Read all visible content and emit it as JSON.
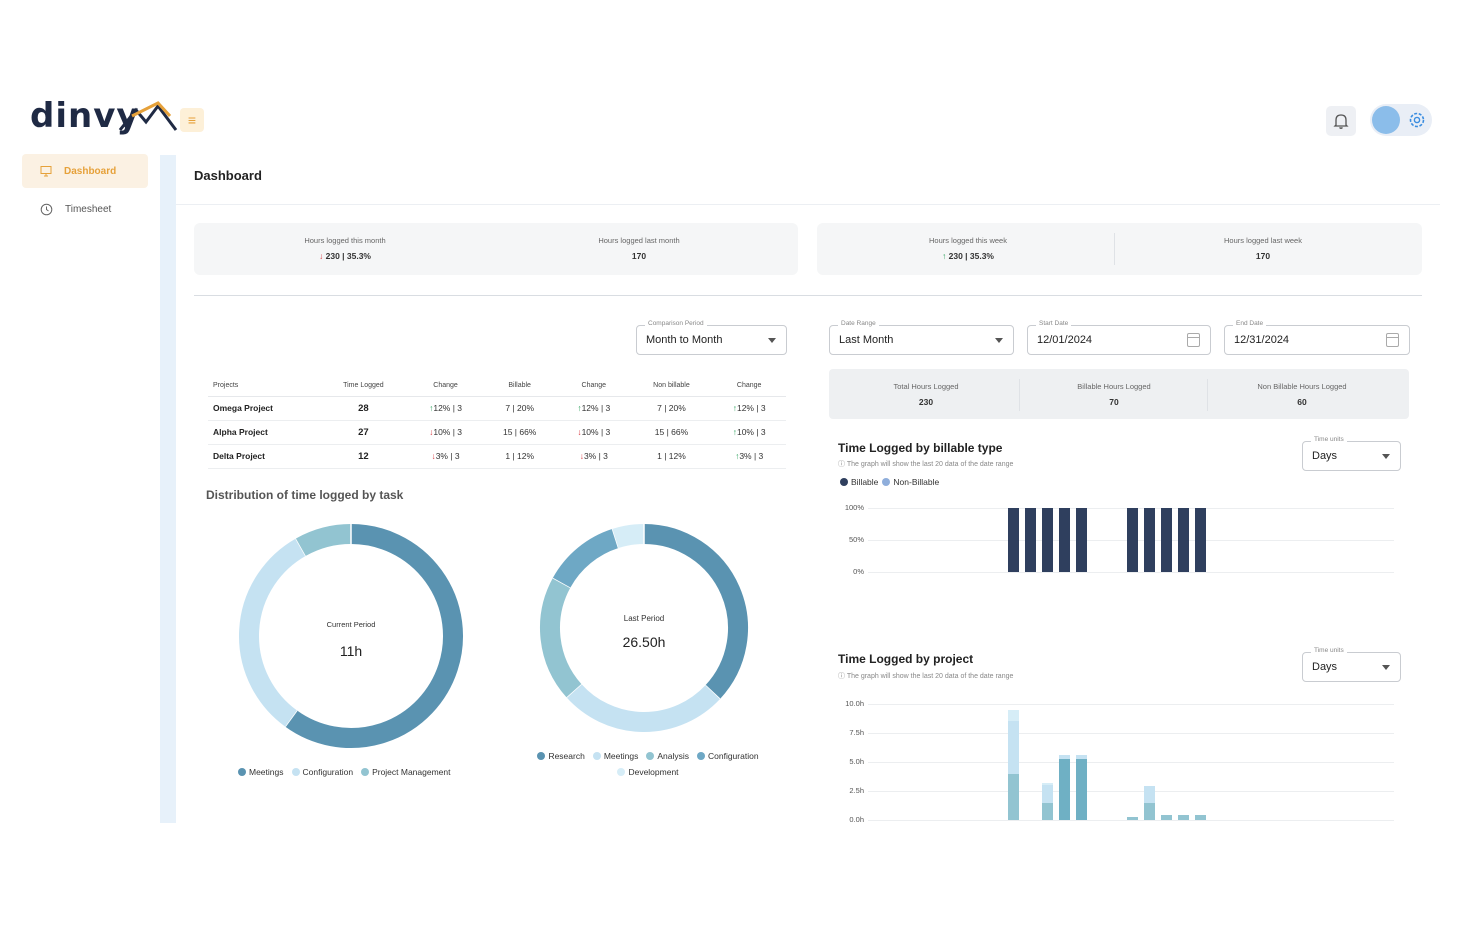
{
  "app": {
    "logo_text": "dinvy"
  },
  "sidebar": {
    "items": [
      {
        "label": "Dashboard",
        "icon": "monitor-icon",
        "active": true
      },
      {
        "label": "Timesheet",
        "icon": "clock-icon",
        "active": false
      }
    ]
  },
  "page": {
    "title": "Dashboard"
  },
  "stats_month": [
    {
      "label": "Hours logged this month",
      "value": "230 | 35.3%",
      "trend": "down"
    },
    {
      "label": "Hours logged last month",
      "value": "170",
      "trend": "none"
    }
  ],
  "stats_week": [
    {
      "label": "Hours logged this week",
      "value": "230 | 35.3%",
      "trend": "up"
    },
    {
      "label": "Hours logged last week",
      "value": "170",
      "trend": "none"
    }
  ],
  "comparison": {
    "label": "Comparison Period",
    "value": "Month to Month"
  },
  "date_range": {
    "label": "Date Range",
    "value": "Last Month"
  },
  "start_date": {
    "label": "Start Date",
    "value": "12/01/2024"
  },
  "end_date": {
    "label": "End Date",
    "value": "12/31/2024"
  },
  "projects_table": {
    "headers": [
      "Projects",
      "Time Logged",
      "Change",
      "Billable",
      "Change",
      "Non billable",
      "Change"
    ],
    "rows": [
      {
        "name": "Omega Project",
        "time": "28",
        "c1": "12% | 3",
        "c1t": "up",
        "billable": "7 | 20%",
        "c2": "12% | 3",
        "c2t": "up",
        "nonbill": "7 | 20%",
        "c3": "12% | 3",
        "c3t": "up"
      },
      {
        "name": "Alpha Project",
        "time": "27",
        "c1": "10% | 3",
        "c1t": "down",
        "billable": "15 | 66%",
        "c2": "10% | 3",
        "c2t": "down",
        "nonbill": "15 | 66%",
        "c3": "10% | 3",
        "c3t": "up"
      },
      {
        "name": "Delta Project",
        "time": "12",
        "c1": "3% | 3",
        "c1t": "down",
        "billable": "1 | 12%",
        "c2": "3% | 3",
        "c2t": "down",
        "nonbill": "1 | 12%",
        "c3": "3% | 3",
        "c3t": "up"
      }
    ]
  },
  "distribution": {
    "title": "Distribution of time logged by task",
    "current": {
      "label": "Current Period",
      "value": "11h",
      "legend": [
        "Meetings",
        "Configuration",
        "Project Management"
      ]
    },
    "last": {
      "label": "Last Period",
      "value": "26.50h",
      "legend": [
        "Research",
        "Meetings",
        "Analysis",
        "Configuration",
        "Development"
      ]
    }
  },
  "totals": [
    {
      "label": "Total Hours Logged",
      "value": "230"
    },
    {
      "label": "Billable Hours Logged",
      "value": "70"
    },
    {
      "label": "Non Billable Hours Logged",
      "value": "60"
    }
  ],
  "chart_billable": {
    "title": "Time Logged by billable type",
    "note": "The graph will show the last 20 data of the date range",
    "time_units_label": "Time units",
    "time_units_value": "Days",
    "legend": [
      "Billable",
      "Non-Billable"
    ],
    "y_ticks": [
      "100%",
      "50%",
      "0%"
    ]
  },
  "chart_project": {
    "title": "Time Logged by project",
    "note": "The graph will show the last 20 data of the date range",
    "time_units_label": "Time units",
    "time_units_value": "Days",
    "y_ticks": [
      "10.0h",
      "7.5h",
      "5.0h",
      "2.5h",
      "0.0h"
    ]
  },
  "colors": {
    "accent": "#e6a13a",
    "navy": "#2f3f5e",
    "teal_dark": "#5a93b1",
    "teal_light": "#c5e2f2",
    "teal_mid": "#92c4d1"
  },
  "chart_data": [
    {
      "type": "pie",
      "labels": [
        "Meetings",
        "Configuration",
        "Project Management"
      ],
      "values": [
        6.6,
        3.5,
        0.9
      ]
    },
    {
      "type": "pie",
      "labels": [
        "Research",
        "Meetings",
        "Analysis",
        "Configuration",
        "Development"
      ],
      "values": [
        9.8,
        7.0,
        5.2,
        3.2,
        1.3
      ]
    },
    {
      "type": "bar",
      "ylabel": "",
      "ylim": [
        0,
        100
      ],
      "series": [
        {
          "name": "Billable",
          "values": [
            100,
            100,
            100,
            100,
            100,
            100,
            100,
            100,
            100,
            100
          ]
        },
        {
          "name": "Non-Billable",
          "values": [
            0,
            0,
            0,
            0,
            0,
            0,
            0,
            0,
            0,
            0
          ]
        }
      ]
    },
    {
      "type": "bar",
      "ylim": [
        0,
        10
      ],
      "stacks": [
        [
          4.0,
          4.5,
          1.0
        ],
        [
          1.5,
          1.5,
          0.2
        ],
        [
          5.3,
          0.3
        ],
        [
          5.3,
          0.3
        ],
        [
          0.3
        ],
        [
          1.5,
          1.4
        ],
        [
          0.4
        ],
        [
          0.4
        ],
        [
          0.4
        ]
      ]
    }
  ]
}
